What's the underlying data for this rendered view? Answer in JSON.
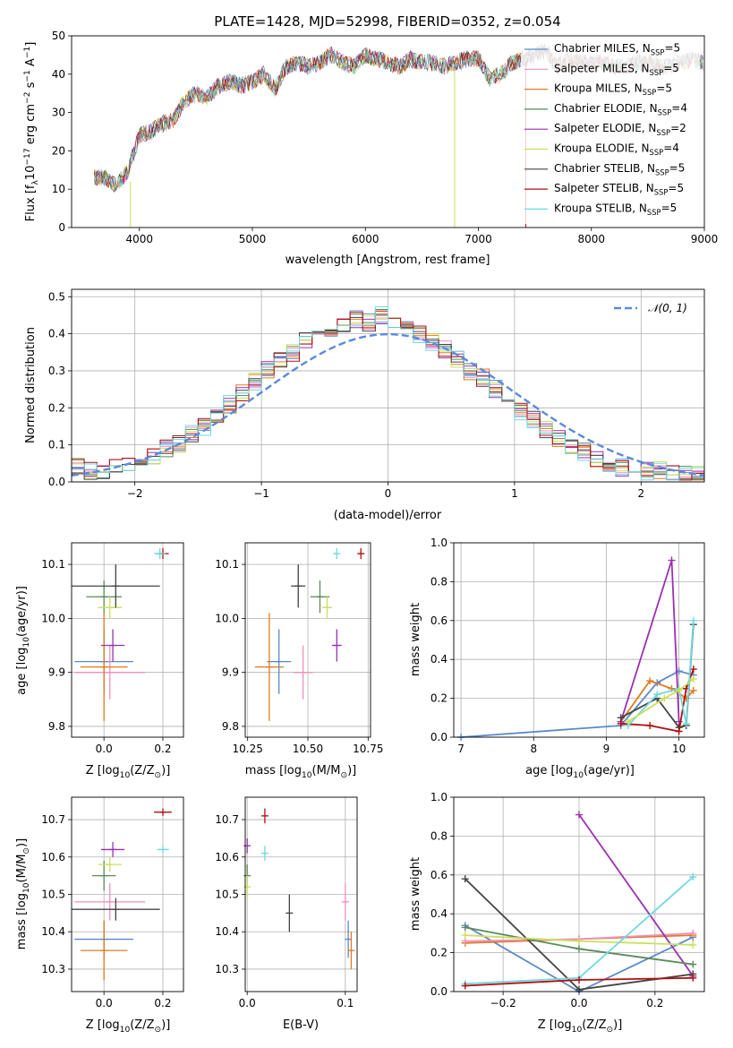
{
  "title": "PLATE=1428, MJD=52998, FIBERID=0352, z=0.054",
  "colors": {
    "chabrier_miles": "#5b8ac9",
    "salpeter_miles": "#f08fc0",
    "kroupa_miles": "#e07b1f",
    "chabrier_elodie": "#5a8a5a",
    "salpeter_elodie": "#9b30b0",
    "kroupa_elodie": "#c8e05a",
    "chabrier_stelib": "#444444",
    "salpeter_stelib": "#b01010",
    "kroupa_stelib": "#6fd8e0",
    "gaussian": "#5b8ad9"
  },
  "chart_data": [
    {
      "id": "spectrum",
      "type": "line",
      "xlabel": "wavelength [Angstrom, rest frame]",
      "ylabel": "Flux [f",
      "ylabel_sub": "λ",
      "ylabel_mid": "10",
      "ylabel_exp": "−17",
      "ylabel_rest": " erg cm",
      "ylabel_exp2": "−2",
      "ylabel_s": " s",
      "ylabel_exp3": "−1",
      "ylabel_a": " A",
      "ylabel_exp4": "−1",
      "ylabel_end": "]",
      "xlim": [
        3400,
        9000
      ],
      "ylim": [
        0,
        50
      ],
      "xticks": [
        "4000",
        "5000",
        "6000",
        "7000",
        "8000",
        "9000"
      ],
      "yticks": [
        "0",
        "10",
        "20",
        "30",
        "40",
        "50"
      ],
      "x": [
        3600,
        3700,
        3800,
        3900,
        4000,
        4100,
        4200,
        4300,
        4400,
        4500,
        4600,
        4700,
        4800,
        4900,
        5000,
        5100,
        5200,
        5300,
        5400,
        5500,
        5600,
        5700,
        5800,
        5900,
        6000,
        6100,
        6200,
        6300,
        6400,
        6500,
        6600,
        6700,
        6800,
        6900,
        7000,
        7100,
        7200,
        7300,
        7400,
        7500,
        7600,
        7700,
        7800,
        7900,
        8000,
        8100,
        8200,
        8300,
        8400,
        8500,
        8600,
        8700,
        8800,
        8900,
        9000
      ],
      "y": [
        13,
        13,
        11,
        15,
        24,
        25,
        27,
        28,
        33,
        35,
        34,
        37,
        38,
        37,
        38,
        40,
        36,
        42,
        43,
        42,
        43,
        45,
        43,
        42,
        45,
        44,
        43,
        42,
        44,
        43,
        43,
        42,
        43,
        44,
        44,
        39,
        40,
        43,
        44,
        45,
        46,
        42,
        44,
        43,
        43,
        43,
        42,
        42,
        43,
        43,
        42,
        42,
        43,
        44,
        43
      ],
      "legend": [
        {
          "color": "chabrier_miles",
          "label": "Chabrier MILES, N",
          "sub": "SSP",
          "val": "=5"
        },
        {
          "color": "salpeter_miles",
          "label": "Salpeter MILES, N",
          "sub": "SSP",
          "val": "=5"
        },
        {
          "color": "kroupa_miles",
          "label": "Kroupa MILES, N",
          "sub": "SSP",
          "val": "=5"
        },
        {
          "color": "chabrier_elodie",
          "label": "Chabrier ELODIE, N",
          "sub": "SSP",
          "val": "=4"
        },
        {
          "color": "salpeter_elodie",
          "label": "Salpeter ELODIE, N",
          "sub": "SSP",
          "val": "=2"
        },
        {
          "color": "kroupa_elodie",
          "label": "Kroupa ELODIE, N",
          "sub": "SSP",
          "val": "=4"
        },
        {
          "color": "chabrier_stelib",
          "label": "Chabrier STELIB, N",
          "sub": "SSP",
          "val": "=5"
        },
        {
          "color": "salpeter_stelib",
          "label": "Salpeter STELIB, N",
          "sub": "SSP",
          "val": "=5"
        },
        {
          "color": "kroupa_stelib",
          "label": "Kroupa STELIB, N",
          "sub": "SSP",
          "val": "=5"
        }
      ]
    },
    {
      "id": "residuals",
      "type": "bar",
      "xlabel": "(data-model)/error",
      "ylabel": "Normed distribution",
      "xlim": [
        -2.5,
        2.5
      ],
      "ylim": [
        0,
        0.52
      ],
      "xticks": [
        "−2",
        "−1",
        "0",
        "1",
        "2"
      ],
      "yticks": [
        "0.0",
        "0.1",
        "0.2",
        "0.3",
        "0.4",
        "0.5"
      ],
      "legend": "𝒩(0, 1)",
      "bin_edges": [
        -2.5,
        -2.4,
        -2.3,
        -2.2,
        -2.1,
        -2.0,
        -1.9,
        -1.8,
        -1.7,
        -1.6,
        -1.5,
        -1.4,
        -1.3,
        -1.2,
        -1.1,
        -1.0,
        -0.9,
        -0.8,
        -0.7,
        -0.6,
        -0.5,
        -0.4,
        -0.3,
        -0.2,
        -0.1,
        0.0,
        0.1,
        0.2,
        0.3,
        0.4,
        0.5,
        0.6,
        0.7,
        0.8,
        0.9,
        1.0,
        1.1,
        1.2,
        1.3,
        1.4,
        1.5,
        1.6,
        1.7,
        1.8,
        1.9,
        2.0,
        2.1,
        2.2,
        2.3,
        2.4,
        2.5
      ],
      "series_heights": [
        [
          0.04,
          0.03,
          0.03,
          0.04,
          0.05,
          0.06,
          0.07,
          0.09,
          0.1,
          0.13,
          0.15,
          0.18,
          0.21,
          0.24,
          0.27,
          0.3,
          0.33,
          0.35,
          0.38,
          0.4,
          0.41,
          0.43,
          0.44,
          0.43,
          0.45,
          0.42,
          0.41,
          0.4,
          0.38,
          0.36,
          0.33,
          0.3,
          0.28,
          0.25,
          0.22,
          0.19,
          0.17,
          0.14,
          0.12,
          0.1,
          0.08,
          0.06,
          0.05,
          0.04,
          0.04,
          0.03,
          0.03,
          0.02,
          0.02,
          0.02
        ]
      ],
      "gaussian_mu": 0,
      "gaussian_sigma": 1
    },
    {
      "id": "age_vs_Z",
      "type": "scatter",
      "xlabel": "Z [log",
      "xlabel_sub": "10",
      "xlabel_rest": "(Z/Z",
      "xlabel_sub2": "⊙",
      "xlabel_end": ")]",
      "ylabel": "age  [log",
      "ylabel_sub": "10",
      "ylabel_rest": "(age/yr)]",
      "xlim": [
        -0.11,
        0.27
      ],
      "ylim": [
        9.78,
        10.14
      ],
      "xticks": [
        "0.0",
        "0.2"
      ],
      "yticks": [
        "9.8",
        "9.9",
        "10.0",
        "10.1"
      ],
      "points": [
        {
          "color": "chabrier_miles",
          "x": 0.0,
          "y": 9.92,
          "xerr": 0.1,
          "yerr": 0.06
        },
        {
          "color": "salpeter_miles",
          "x": 0.02,
          "y": 9.9,
          "xerr": 0.12,
          "yerr": 0.05
        },
        {
          "color": "kroupa_miles",
          "x": 0.0,
          "y": 9.91,
          "xerr": 0.08,
          "yerr": 0.1
        },
        {
          "color": "chabrier_elodie",
          "x": 0.0,
          "y": 10.04,
          "xerr": 0.06,
          "yerr": 0.03
        },
        {
          "color": "salpeter_elodie",
          "x": 0.03,
          "y": 9.95,
          "xerr": 0.04,
          "yerr": 0.03
        },
        {
          "color": "kroupa_elodie",
          "x": 0.02,
          "y": 10.02,
          "xerr": 0.04,
          "yerr": 0.02
        },
        {
          "color": "chabrier_stelib",
          "x": 0.04,
          "y": 10.06,
          "xerr": 0.15,
          "yerr": 0.04
        },
        {
          "color": "salpeter_stelib",
          "x": 0.2,
          "y": 10.12,
          "xerr": 0.02,
          "yerr": 0.01
        },
        {
          "color": "kroupa_stelib",
          "x": 0.19,
          "y": 10.12,
          "xerr": 0.02,
          "yerr": 0.01
        }
      ]
    },
    {
      "id": "age_vs_mass",
      "type": "scatter",
      "xlabel": "mass [log",
      "xlabel_sub": "10",
      "xlabel_rest": "(M/M",
      "xlabel_sub2": "⊙",
      "xlabel_end": ")]",
      "xlim": [
        10.24,
        10.76
      ],
      "ylim": [
        9.78,
        10.14
      ],
      "xticks": [
        "10.25",
        "10.50",
        "10.75"
      ],
      "yticks": [
        "9.8",
        "9.9",
        "10.0",
        "10.1"
      ],
      "points": [
        {
          "color": "chabrier_miles",
          "x": 10.38,
          "y": 9.92,
          "xerr": 0.05,
          "yerr": 0.06
        },
        {
          "color": "salpeter_miles",
          "x": 10.48,
          "y": 9.9,
          "xerr": 0.04,
          "yerr": 0.05
        },
        {
          "color": "kroupa_miles",
          "x": 10.34,
          "y": 9.91,
          "xerr": 0.06,
          "yerr": 0.1
        },
        {
          "color": "chabrier_elodie",
          "x": 10.55,
          "y": 10.04,
          "xerr": 0.04,
          "yerr": 0.03
        },
        {
          "color": "salpeter_elodie",
          "x": 10.62,
          "y": 9.95,
          "xerr": 0.02,
          "yerr": 0.03
        },
        {
          "color": "kroupa_elodie",
          "x": 10.58,
          "y": 10.02,
          "xerr": 0.02,
          "yerr": 0.02
        },
        {
          "color": "chabrier_stelib",
          "x": 10.46,
          "y": 10.06,
          "xerr": 0.03,
          "yerr": 0.04
        },
        {
          "color": "salpeter_stelib",
          "x": 10.72,
          "y": 10.12,
          "xerr": 0.01,
          "yerr": 0.01
        },
        {
          "color": "kroupa_stelib",
          "x": 10.62,
          "y": 10.12,
          "xerr": 0.01,
          "yerr": 0.01
        }
      ]
    },
    {
      "id": "weight_vs_age",
      "type": "line",
      "xlabel": "age  [log",
      "xlabel_sub": "10",
      "xlabel_rest": "(age/yr)]",
      "ylabel": "mass weight",
      "xlim": [
        6.9,
        10.35
      ],
      "ylim": [
        0,
        1
      ],
      "xticks": [
        "7",
        "8",
        "9",
        "10"
      ],
      "yticks": [
        "0.0",
        "0.2",
        "0.4",
        "0.6",
        "0.8",
        "1.0"
      ],
      "series": [
        {
          "color": "chabrier_miles",
          "x": [
            7.0,
            9.2,
            9.7,
            10.0,
            10.2
          ],
          "y": [
            0.0,
            0.06,
            0.28,
            0.34,
            0.32
          ]
        },
        {
          "color": "kroupa_miles",
          "x": [
            9.2,
            9.6,
            9.9,
            10.1,
            10.2
          ],
          "y": [
            0.08,
            0.29,
            0.25,
            0.2,
            0.24
          ]
        },
        {
          "color": "salpeter_elodie",
          "x": [
            9.2,
            9.9,
            10.0
          ],
          "y": [
            0.08,
            0.91,
            0.08
          ]
        },
        {
          "color": "chabrier_stelib",
          "x": [
            9.2,
            9.7,
            10.0,
            10.1,
            10.2
          ],
          "y": [
            0.1,
            0.2,
            0.05,
            0.06,
            0.58
          ]
        },
        {
          "color": "salpeter_stelib",
          "x": [
            9.2,
            9.6,
            10.0,
            10.1,
            10.2
          ],
          "y": [
            0.07,
            0.06,
            0.03,
            0.25,
            0.35
          ]
        },
        {
          "color": "kroupa_stelib",
          "x": [
            9.3,
            9.7,
            10.0,
            10.1,
            10.2
          ],
          "y": [
            0.06,
            0.22,
            0.25,
            0.07,
            0.6
          ]
        },
        {
          "color": "kroupa_elodie",
          "x": [
            9.3,
            9.8,
            10.0,
            10.2
          ],
          "y": [
            0.08,
            0.2,
            0.24,
            0.3
          ]
        }
      ]
    },
    {
      "id": "mass_vs_Z",
      "type": "scatter",
      "xlabel": "Z [log",
      "xlabel_sub": "10",
      "xlabel_rest": "(Z/Z",
      "xlabel_sub2": "⊙",
      "xlabel_end": ")]",
      "ylabel": "mass [log",
      "ylabel_sub": "10",
      "ylabel_rest": "(M/M",
      "ylabel_sub2": "⊙",
      "ylabel_end": ")]",
      "xlim": [
        -0.11,
        0.27
      ],
      "ylim": [
        10.24,
        10.76
      ],
      "xticks": [
        "0.0",
        "0.2"
      ],
      "yticks": [
        "10.3",
        "10.4",
        "10.5",
        "10.6",
        "10.7"
      ],
      "points": [
        {
          "color": "chabrier_miles",
          "x": 0.0,
          "y": 10.38,
          "xerr": 0.1,
          "yerr": 0.05
        },
        {
          "color": "salpeter_miles",
          "x": 0.02,
          "y": 10.48,
          "xerr": 0.12,
          "yerr": 0.05
        },
        {
          "color": "kroupa_miles",
          "x": 0.0,
          "y": 10.35,
          "xerr": 0.08,
          "yerr": 0.08
        },
        {
          "color": "chabrier_elodie",
          "x": 0.0,
          "y": 10.55,
          "xerr": 0.04,
          "yerr": 0.04
        },
        {
          "color": "salpeter_elodie",
          "x": 0.03,
          "y": 10.62,
          "xerr": 0.04,
          "yerr": 0.02
        },
        {
          "color": "kroupa_elodie",
          "x": 0.02,
          "y": 10.58,
          "xerr": 0.04,
          "yerr": 0.02
        },
        {
          "color": "chabrier_stelib",
          "x": 0.04,
          "y": 10.46,
          "xerr": 0.15,
          "yerr": 0.03
        },
        {
          "color": "salpeter_stelib",
          "x": 0.2,
          "y": 10.72,
          "xerr": 0.03,
          "yerr": 0.01
        },
        {
          "color": "kroupa_stelib",
          "x": 0.2,
          "y": 10.62,
          "xerr": 0.02,
          "yerr": 0.01
        }
      ]
    },
    {
      "id": "mass_vs_ebv",
      "type": "scatter",
      "xlabel": "E(B-V)",
      "xlim": [
        -0.002,
        0.112
      ],
      "ylim": [
        10.24,
        10.76
      ],
      "xticks": [
        "0.0",
        "0.1"
      ],
      "yticks": [
        "10.3",
        "10.4",
        "10.5",
        "10.6",
        "10.7"
      ],
      "points": [
        {
          "color": "chabrier_miles",
          "x": 0.103,
          "y": 10.38,
          "xerr": 0,
          "yerr": 0.05
        },
        {
          "color": "salpeter_miles",
          "x": 0.1,
          "y": 10.48,
          "xerr": 0,
          "yerr": 0.05
        },
        {
          "color": "kroupa_miles",
          "x": 0.106,
          "y": 10.35,
          "xerr": 0,
          "yerr": 0.05
        },
        {
          "color": "chabrier_elodie",
          "x": 0.0,
          "y": 10.55,
          "xerr": 0,
          "yerr": 0.03
        },
        {
          "color": "salpeter_elodie",
          "x": 0.0,
          "y": 10.63,
          "xerr": 0,
          "yerr": 0.02
        },
        {
          "color": "kroupa_elodie",
          "x": 0.0,
          "y": 10.52,
          "xerr": 0,
          "yerr": 0.03
        },
        {
          "color": "chabrier_stelib",
          "x": 0.043,
          "y": 10.45,
          "xerr": 0,
          "yerr": 0.05
        },
        {
          "color": "salpeter_stelib",
          "x": 0.018,
          "y": 10.71,
          "xerr": 0,
          "yerr": 0.02
        },
        {
          "color": "kroupa_stelib",
          "x": 0.018,
          "y": 10.61,
          "xerr": 0,
          "yerr": 0.02
        }
      ]
    },
    {
      "id": "weight_vs_Z",
      "type": "line",
      "xlabel": "Z [log",
      "xlabel_sub": "10",
      "xlabel_rest": "(Z/Z",
      "xlabel_sub2": "⊙",
      "xlabel_end": ")]",
      "ylabel": "mass weight",
      "xlim": [
        -0.33,
        0.33
      ],
      "ylim": [
        0,
        1
      ],
      "xticks": [
        "−0.2",
        "0.0",
        "0.2"
      ],
      "yticks": [
        "0.0",
        "0.2",
        "0.4",
        "0.6",
        "0.8",
        "1.0"
      ],
      "series": [
        {
          "color": "chabrier_miles",
          "x": [
            -0.3,
            0.0,
            0.3
          ],
          "y": [
            0.34,
            0.0,
            0.28
          ]
        },
        {
          "color": "kroupa_miles",
          "x": [
            -0.3,
            0.0,
            0.3
          ],
          "y": [
            0.25,
            0.27,
            0.29
          ]
        },
        {
          "color": "salpeter_miles",
          "x": [
            -0.3,
            0.0,
            0.3
          ],
          "y": [
            0.26,
            0.27,
            0.3
          ]
        },
        {
          "color": "salpeter_elodie",
          "x": [
            0.0,
            0.3
          ],
          "y": [
            0.91,
            0.08
          ]
        },
        {
          "color": "chabrier_stelib",
          "x": [
            -0.3,
            0.0,
            0.3
          ],
          "y": [
            0.58,
            0.01,
            0.09
          ]
        },
        {
          "color": "chabrier_elodie",
          "x": [
            -0.3,
            0.0,
            0.3
          ],
          "y": [
            0.33,
            0.22,
            0.14
          ]
        },
        {
          "color": "kroupa_elodie",
          "x": [
            -0.3,
            0.0,
            0.3
          ],
          "y": [
            0.29,
            0.26,
            0.24
          ]
        },
        {
          "color": "kroupa_stelib",
          "x": [
            -0.3,
            0.0,
            0.3
          ],
          "y": [
            0.04,
            0.07,
            0.59
          ]
        },
        {
          "color": "salpeter_stelib",
          "x": [
            -0.3,
            0.0,
            0.3
          ],
          "y": [
            0.03,
            0.06,
            0.07
          ]
        }
      ]
    }
  ]
}
